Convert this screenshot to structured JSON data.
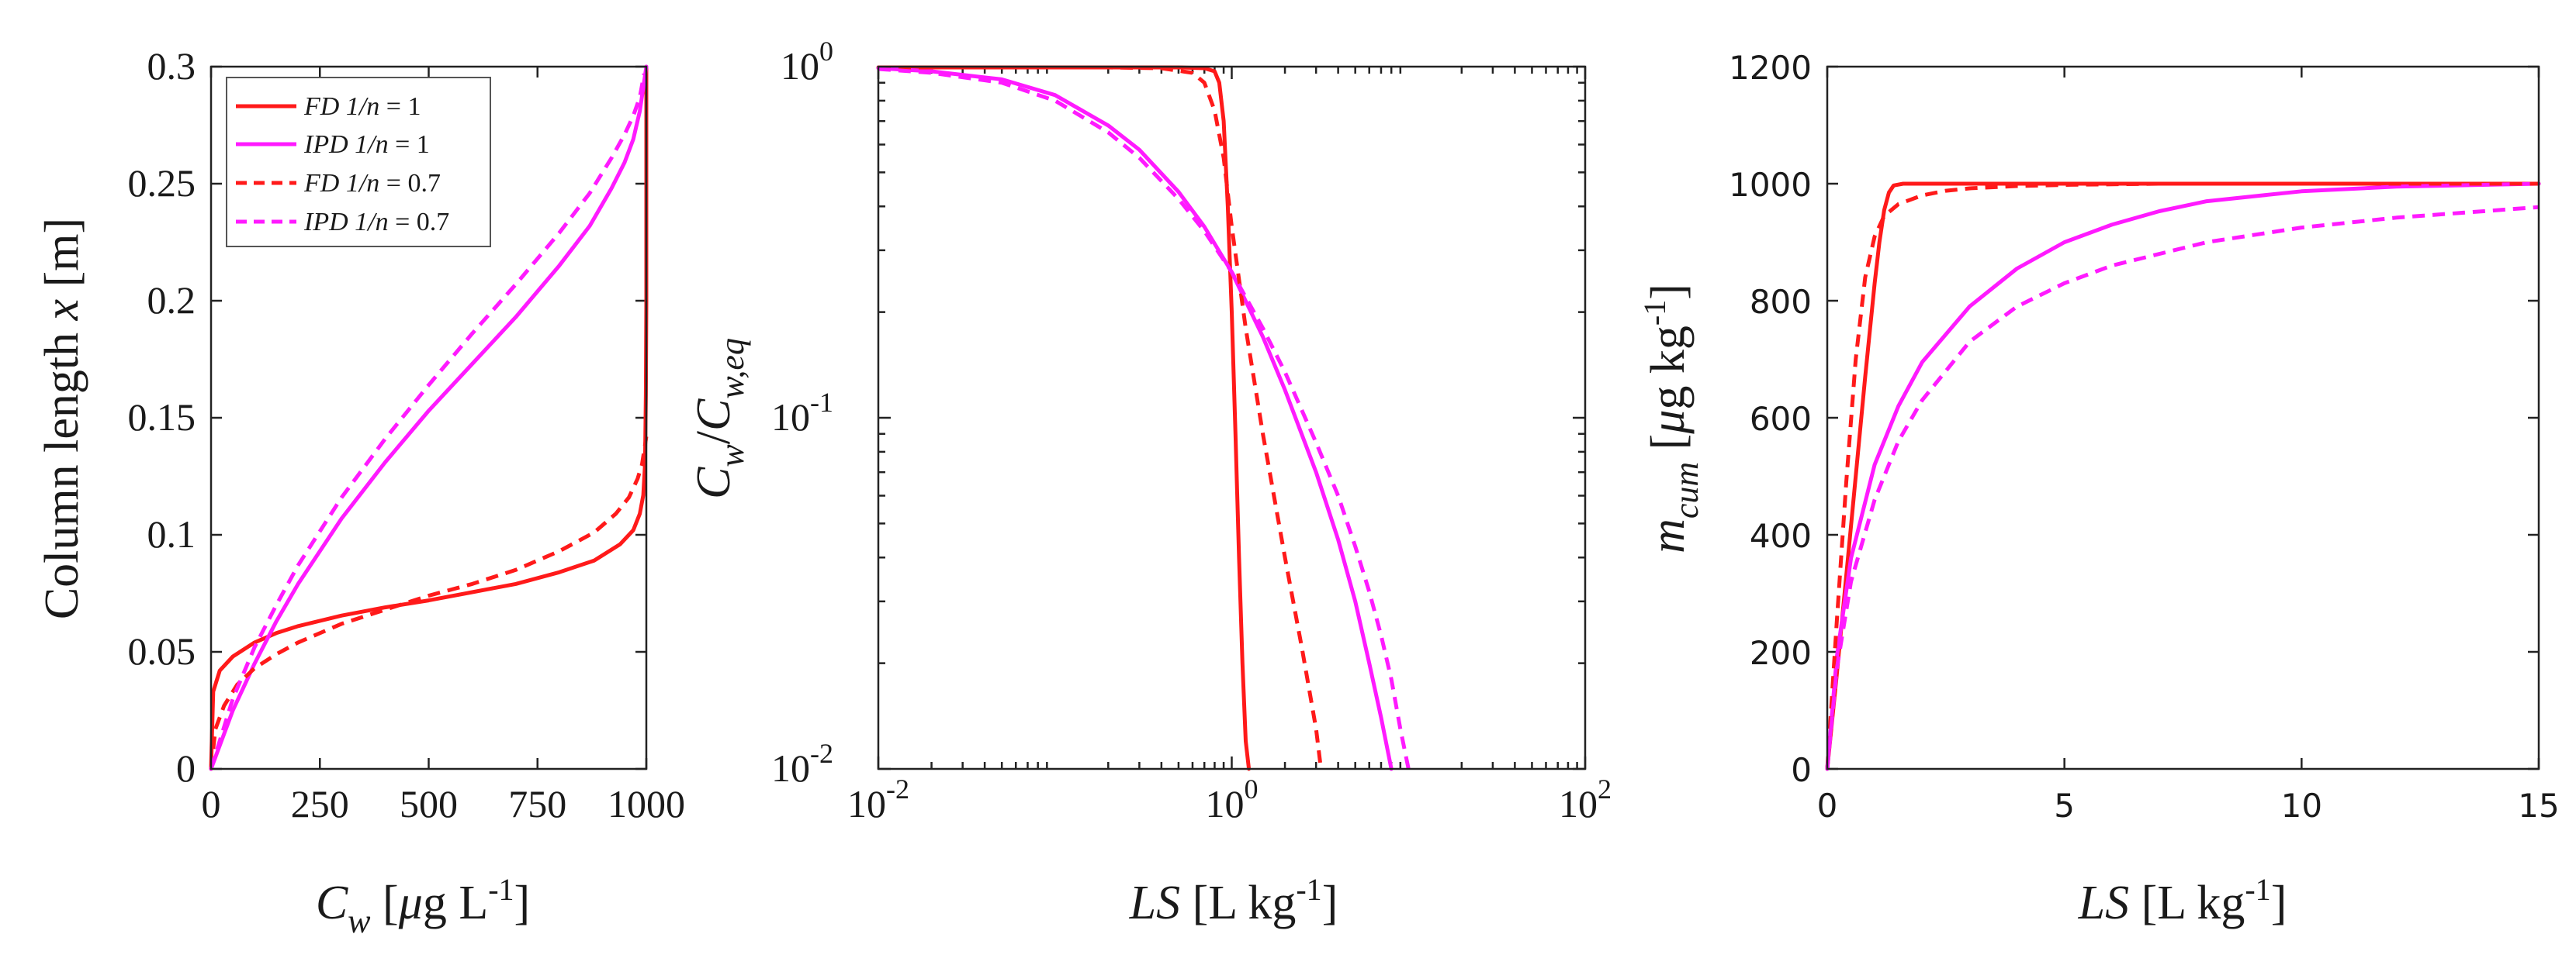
{
  "colors": {
    "red": "#ff1a1a",
    "magenta": "#ff1aff",
    "axis": "#222222"
  },
  "chart_data": [
    {
      "type": "line",
      "panel": "left",
      "title": "",
      "xlabel": {
        "sym": "C",
        "sub": "w",
        "unit_pre": " [",
        "mu": "μ",
        "unit_mid": "g L",
        "sup": "-1",
        "unit_post": "]"
      },
      "ylabel": {
        "text": "Column length ",
        "sym": "x",
        "unit": " [m]"
      },
      "xlim": [
        0,
        1000
      ],
      "ylim": [
        0,
        0.3
      ],
      "xticks": [
        0,
        250,
        500,
        750,
        1000
      ],
      "xtick_labels": [
        "0",
        "250",
        "500",
        "750",
        "1000"
      ],
      "yticks": [
        0,
        0.05,
        0.1,
        0.15,
        0.2,
        0.25,
        0.3
      ],
      "ytick_labels": [
        "0",
        "0.05",
        "0.1",
        "0.15",
        "0.2",
        "0.25",
        "0.3"
      ],
      "legend": {
        "position": "top-left",
        "entries": [
          {
            "model": "FD",
            "rest": " 1/n",
            "eq": " = 1",
            "color": "#ff1a1a",
            "dash": "solid"
          },
          {
            "model": "IPD",
            "rest": " 1/n",
            "eq": " = 1",
            "color": "#ff1aff",
            "dash": "solid"
          },
          {
            "model": "FD",
            "rest": " 1/n",
            "eq": " = 0.7",
            "color": "#ff1a1a",
            "dash": "dashed"
          },
          {
            "model": "IPD",
            "rest": " 1/n",
            "eq": " = 0.7",
            "color": "#ff1aff",
            "dash": "dashed"
          }
        ]
      },
      "series": [
        {
          "name": "FD 1/n = 1",
          "color": "#ff1a1a",
          "dash": "solid",
          "x": [
            0,
            5,
            20,
            50,
            100,
            150,
            200,
            300,
            400,
            500,
            600,
            700,
            800,
            880,
            940,
            970,
            985,
            993,
            997,
            999,
            1000,
            1000
          ],
          "y": [
            0,
            0.033,
            0.042,
            0.048,
            0.054,
            0.058,
            0.061,
            0.0655,
            0.069,
            0.072,
            0.0755,
            0.079,
            0.084,
            0.089,
            0.096,
            0.102,
            0.109,
            0.117,
            0.13,
            0.16,
            0.2,
            0.3
          ]
        },
        {
          "name": "IPD 1/n = 1",
          "color": "#ff1aff",
          "dash": "solid",
          "x": [
            0,
            50,
            100,
            150,
            200,
            300,
            400,
            500,
            600,
            700,
            800,
            870,
            920,
            950,
            970,
            985,
            1000
          ],
          "y": [
            0,
            0.025,
            0.045,
            0.063,
            0.079,
            0.107,
            0.131,
            0.153,
            0.173,
            0.193,
            0.215,
            0.232,
            0.248,
            0.259,
            0.269,
            0.281,
            0.3
          ]
        },
        {
          "name": "FD 1/n = 0.7",
          "color": "#ff1a1a",
          "dash": "dashed",
          "x": [
            0,
            10,
            30,
            60,
            100,
            150,
            200,
            300,
            400,
            500,
            600,
            700,
            800,
            880,
            930,
            960,
            980,
            990,
            995,
            1000
          ],
          "y": [
            0,
            0.017,
            0.027,
            0.036,
            0.043,
            0.049,
            0.054,
            0.062,
            0.068,
            0.074,
            0.079,
            0.085,
            0.093,
            0.101,
            0.109,
            0.116,
            0.124,
            0.13,
            0.136,
            0.142
          ]
        },
        {
          "name": "IPD 1/n = 0.7",
          "color": "#ff1aff",
          "dash": "dashed",
          "x": [
            0,
            50,
            100,
            150,
            200,
            300,
            400,
            500,
            600,
            700,
            800,
            870,
            920,
            950,
            970,
            985,
            995
          ],
          "y": [
            0,
            0.03,
            0.052,
            0.07,
            0.087,
            0.116,
            0.141,
            0.164,
            0.186,
            0.207,
            0.229,
            0.246,
            0.261,
            0.271,
            0.279,
            0.287,
            0.297
          ]
        }
      ]
    },
    {
      "type": "line",
      "panel": "middle",
      "xscale": "log",
      "yscale": "log",
      "xlabel": {
        "sym": "LS",
        "unit_pre": " [L kg",
        "sup": "-1",
        "unit_post": "]"
      },
      "ylabel": {
        "num": "C",
        "num_sub": "w",
        "slash": "/",
        "den": "C",
        "den_sub": "w,eq"
      },
      "xlim": [
        0.01,
        100
      ],
      "ylim": [
        0.01,
        1
      ],
      "xticks": [
        0.01,
        1,
        100
      ],
      "xtick_labels": [
        {
          "base": "10",
          "exp": "-2"
        },
        {
          "base": "10",
          "exp": "0"
        },
        {
          "base": "10",
          "exp": "2"
        }
      ],
      "yticks": [
        0.01,
        0.1,
        1
      ],
      "ytick_labels": [
        {
          "base": "10",
          "exp": "-2"
        },
        {
          "base": "10",
          "exp": "-1"
        },
        {
          "base": "10",
          "exp": "0"
        }
      ],
      "series": [
        {
          "name": "FD 1/n = 1",
          "color": "#ff1a1a",
          "dash": "solid",
          "x": [
            0.01,
            0.1,
            0.5,
            0.7,
            0.8,
            0.85,
            0.9,
            0.95,
            1.0,
            1.05,
            1.1,
            1.15,
            1.2,
            1.25
          ],
          "y": [
            0.995,
            0.995,
            0.995,
            0.99,
            0.97,
            0.9,
            0.7,
            0.4,
            0.2,
            0.09,
            0.04,
            0.02,
            0.012,
            0.01
          ]
        },
        {
          "name": "IPD 1/n = 1",
          "color": "#ff1aff",
          "dash": "solid",
          "x": [
            0.01,
            0.02,
            0.05,
            0.1,
            0.2,
            0.3,
            0.5,
            0.7,
            1.0,
            1.5,
            2,
            3,
            4,
            5,
            6,
            7,
            8
          ],
          "y": [
            0.99,
            0.97,
            0.92,
            0.83,
            0.68,
            0.58,
            0.44,
            0.35,
            0.26,
            0.17,
            0.12,
            0.07,
            0.045,
            0.03,
            0.02,
            0.014,
            0.01
          ]
        },
        {
          "name": "FD 1/n = 0.7",
          "color": "#ff1a1a",
          "dash": "dashed",
          "x": [
            0.01,
            0.2,
            0.4,
            0.6,
            0.7,
            0.8,
            0.9,
            1.0,
            1.2,
            1.5,
            2.0,
            2.5,
            3.0,
            3.2
          ],
          "y": [
            0.995,
            0.995,
            0.99,
            0.96,
            0.9,
            0.75,
            0.55,
            0.35,
            0.18,
            0.09,
            0.04,
            0.022,
            0.013,
            0.01
          ]
        },
        {
          "name": "IPD 1/n = 0.7",
          "color": "#ff1aff",
          "dash": "dashed",
          "x": [
            0.01,
            0.02,
            0.05,
            0.1,
            0.2,
            0.3,
            0.5,
            0.7,
            1.0,
            1.5,
            2,
            3,
            4,
            5,
            6,
            7,
            8,
            9,
            10
          ],
          "y": [
            0.985,
            0.96,
            0.9,
            0.8,
            0.65,
            0.55,
            0.42,
            0.34,
            0.26,
            0.18,
            0.135,
            0.085,
            0.06,
            0.043,
            0.032,
            0.024,
            0.018,
            0.013,
            0.01
          ]
        }
      ]
    },
    {
      "type": "line",
      "panel": "right",
      "xlabel": {
        "sym": "LS",
        "unit_pre": " [L kg",
        "sup": "-1",
        "unit_post": "]"
      },
      "ylabel": {
        "sym": "m",
        "sub": "cum",
        "unit_pre": " [",
        "mu": "μ",
        "unit_mid": "g kg",
        "sup": "-1",
        "unit_post": "]"
      },
      "xlim": [
        0,
        15
      ],
      "ylim": [
        0,
        1200
      ],
      "xticks": [
        0,
        5,
        10,
        15
      ],
      "xtick_labels": [
        "0",
        "5",
        "10",
        "15"
      ],
      "yticks": [
        0,
        200,
        400,
        600,
        800,
        1000,
        1200
      ],
      "ytick_labels": [
        "0",
        "200",
        "400",
        "600",
        "800",
        "1000",
        "1200"
      ],
      "series": [
        {
          "name": "FD 1/n = 1",
          "color": "#ff1a1a",
          "dash": "solid",
          "x": [
            0,
            0.2,
            0.4,
            0.6,
            0.8,
            1.0,
            1.1,
            1.2,
            1.3,
            1.4,
            1.6,
            2,
            5,
            10,
            15
          ],
          "y": [
            0,
            160,
            330,
            500,
            670,
            830,
            900,
            955,
            985,
            997,
            1000,
            1000,
            1000,
            1000,
            1000
          ]
        },
        {
          "name": "IPD 1/n = 1",
          "color": "#ff1aff",
          "dash": "solid",
          "x": [
            0,
            0.2,
            0.5,
            1,
            1.5,
            2,
            3,
            4,
            5,
            6,
            7,
            8,
            10,
            12,
            15
          ],
          "y": [
            0,
            190,
            360,
            520,
            620,
            695,
            790,
            855,
            900,
            930,
            953,
            970,
            987,
            995,
            1000
          ]
        },
        {
          "name": "FD 1/n = 0.7",
          "color": "#ff1a1a",
          "dash": "dashed",
          "x": [
            0,
            0.2,
            0.4,
            0.6,
            0.8,
            1.0,
            1.2,
            1.5,
            2,
            2.5,
            3,
            4,
            5,
            7,
            10,
            15
          ],
          "y": [
            0,
            250,
            490,
            700,
            840,
            910,
            945,
            965,
            980,
            988,
            992,
            996,
            998,
            1000,
            1000,
            1000
          ]
        },
        {
          "name": "IPD 1/n = 0.7",
          "color": "#ff1aff",
          "dash": "dashed",
          "x": [
            0,
            0.2,
            0.5,
            1,
            1.5,
            2,
            3,
            4,
            5,
            6,
            8,
            10,
            12,
            15
          ],
          "y": [
            0,
            170,
            320,
            460,
            560,
            630,
            730,
            790,
            830,
            860,
            900,
            925,
            942,
            960
          ]
        }
      ]
    }
  ]
}
